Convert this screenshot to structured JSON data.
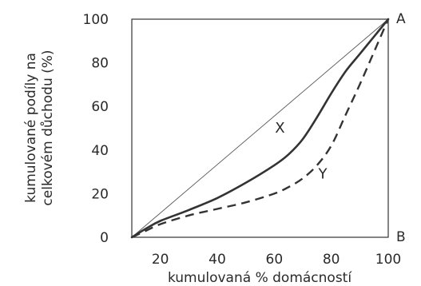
{
  "chart_data": {
    "type": "line",
    "title": "",
    "xlabel": "kumulovaná % domácností",
    "ylabel_lines": [
      "kumulované podíly na",
      "celkovém důchodu (%)"
    ],
    "xlim": [
      10,
      100
    ],
    "ylim": [
      0,
      100
    ],
    "x_ticks": [
      20,
      40,
      60,
      80,
      100
    ],
    "y_ticks": [
      0,
      20,
      40,
      60,
      80,
      100
    ],
    "grid": false,
    "frame": "box",
    "series": [
      {
        "key": "equality",
        "name": "",
        "style": "thin-solid",
        "points": [
          [
            10,
            0
          ],
          [
            100,
            100
          ]
        ]
      },
      {
        "key": "X",
        "name": "X",
        "style": "thick-solid",
        "label_at": [
          62,
          48
        ],
        "points": [
          [
            10,
            0
          ],
          [
            15,
            4
          ],
          [
            20,
            7.5
          ],
          [
            30,
            12.5
          ],
          [
            40,
            18
          ],
          [
            50,
            25
          ],
          [
            60,
            33
          ],
          [
            65,
            38
          ],
          [
            70,
            45
          ],
          [
            75,
            55
          ],
          [
            80,
            66
          ],
          [
            85,
            76
          ],
          [
            90,
            84
          ],
          [
            95,
            92
          ],
          [
            100,
            100
          ]
        ]
      },
      {
        "key": "Y",
        "name": "Y",
        "style": "dashed",
        "label_at": [
          77,
          27
        ],
        "points": [
          [
            10,
            0
          ],
          [
            15,
            3
          ],
          [
            20,
            6
          ],
          [
            30,
            10
          ],
          [
            40,
            13
          ],
          [
            50,
            16
          ],
          [
            60,
            20
          ],
          [
            65,
            23
          ],
          [
            70,
            27
          ],
          [
            75,
            33
          ],
          [
            80,
            42
          ],
          [
            85,
            56
          ],
          [
            90,
            70
          ],
          [
            95,
            85
          ],
          [
            100,
            100
          ]
        ]
      }
    ],
    "corner_labels": {
      "top_right": "A",
      "bottom_right": "B"
    }
  }
}
